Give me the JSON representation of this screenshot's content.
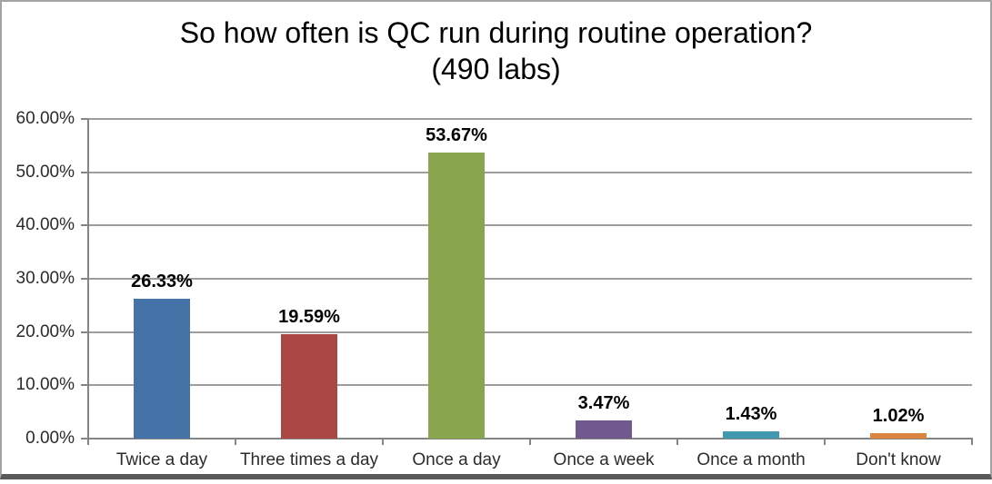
{
  "chart_data": {
    "type": "bar",
    "title": "So how often is QC run during routine operation? (490 labs)",
    "title_line1": "So how often is QC run during routine operation?",
    "title_line2": "(490 labs)",
    "xlabel": "",
    "ylabel": "",
    "categories": [
      "Twice a day",
      "Three times a day",
      "Once a day",
      "Once a week",
      "Once a month",
      "Don't know"
    ],
    "values": [
      26.33,
      19.59,
      53.67,
      3.47,
      1.43,
      1.02
    ],
    "data_labels": [
      "26.33%",
      "19.59%",
      "53.67%",
      "3.47%",
      "1.43%",
      "1.02%"
    ],
    "bar_colors": [
      "#4572A7",
      "#AA4643",
      "#89A54E",
      "#71588F",
      "#4198AF",
      "#DB843D"
    ],
    "y_ticks": [
      "0.00%",
      "10.00%",
      "20.00%",
      "30.00%",
      "40.00%",
      "50.00%",
      "60.00%"
    ],
    "y_tick_values": [
      0,
      10,
      20,
      30,
      40,
      50,
      60
    ],
    "ylim": [
      0,
      60
    ],
    "grid": true,
    "legend": "none",
    "gridline_color": "#9d9d9d",
    "axis_color": "#848484",
    "title_color": "#000000",
    "label_color": "#2b2b2b",
    "data_label_color": "#000000",
    "background_color": "#ffffff",
    "frame_border_color": "#a3a3a3",
    "frame_bottom_border_color": "#595959"
  }
}
